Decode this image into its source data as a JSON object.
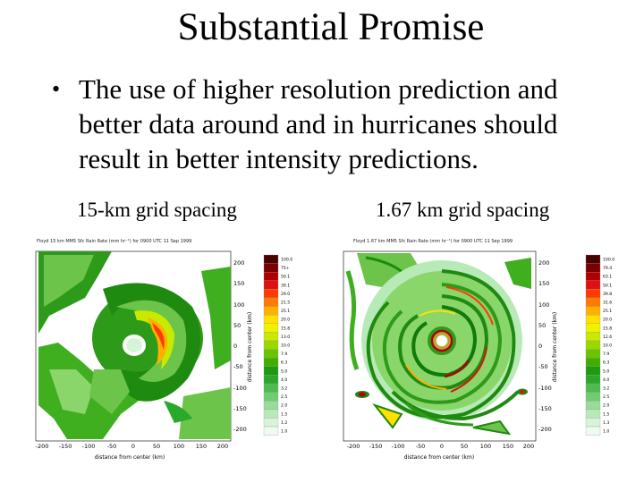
{
  "slide": {
    "title": "Substantial Promise",
    "bullet_symbol": "•",
    "bullet_text": "The use of higher resolution prediction and better data around and in hurricanes should result in better intensity predictions."
  },
  "panels": [
    {
      "caption": "15-km grid spacing",
      "map_title": "Floyd 15 km MM5 Sfc Rain Rate (mm hr⁻¹) for 0900 UTC 11 Sep 1999",
      "x_axis_label": "distance from center (km)",
      "y_axis_label": "distance from center (km)",
      "x_ticks": [
        "-200",
        "-150",
        "-100",
        "-50",
        "0",
        "50",
        "100",
        "150",
        "200"
      ],
      "y_ticks": [
        "200",
        "150",
        "100",
        "50",
        "0",
        "-50",
        "-100",
        "-150",
        "-200"
      ],
      "legend_values": [
        "100.0",
        "75+",
        "50.1",
        "39.1",
        "29.0",
        "21.5",
        "25.1",
        "20.0",
        "15.8",
        "13.0",
        "10.0",
        "7.9",
        "6.3",
        "5.0",
        "4.0",
        "3.2",
        "2.5",
        "2.0",
        "1.5",
        "1.2",
        "1.0"
      ]
    },
    {
      "caption": "1.67 km grid spacing",
      "map_title": "Floyd 1.67 km MM5 Sfc Rain Rate (mm hr⁻¹) for 0900 UTC 11 Sep 1999",
      "x_axis_label": "distance from center (km)",
      "y_axis_label": "distance from center (km)",
      "x_ticks": [
        "-200",
        "-150",
        "-100",
        "-50",
        "0",
        "50",
        "100",
        "150",
        "200"
      ],
      "y_ticks": [
        "200",
        "150",
        "100",
        "50",
        "0",
        "-50",
        "-100",
        "-150",
        "-200"
      ],
      "legend_values": [
        "100.0",
        "79.4",
        "63.1",
        "50.1",
        "39.8",
        "31.6",
        "25.1",
        "20.0",
        "15.8",
        "12.6",
        "10.0",
        "7.9",
        "6.3",
        "5.0",
        "4.0",
        "3.2",
        "2.5",
        "2.0",
        "1.5",
        "1.3",
        "1.0"
      ]
    }
  ],
  "colors": {
    "legend_scale": [
      "#4a0000",
      "#7a0000",
      "#b00000",
      "#e01010",
      "#ff3a00",
      "#ff7a00",
      "#ffb000",
      "#ffe000",
      "#f0f000",
      "#c8ea00",
      "#9ad800",
      "#6cc400",
      "#3fae00",
      "#1f9a10",
      "#2aa82a",
      "#4cbc4c",
      "#70cc70",
      "#96dc96",
      "#b8eab8",
      "#d6f4d6",
      "#eefbee"
    ]
  }
}
